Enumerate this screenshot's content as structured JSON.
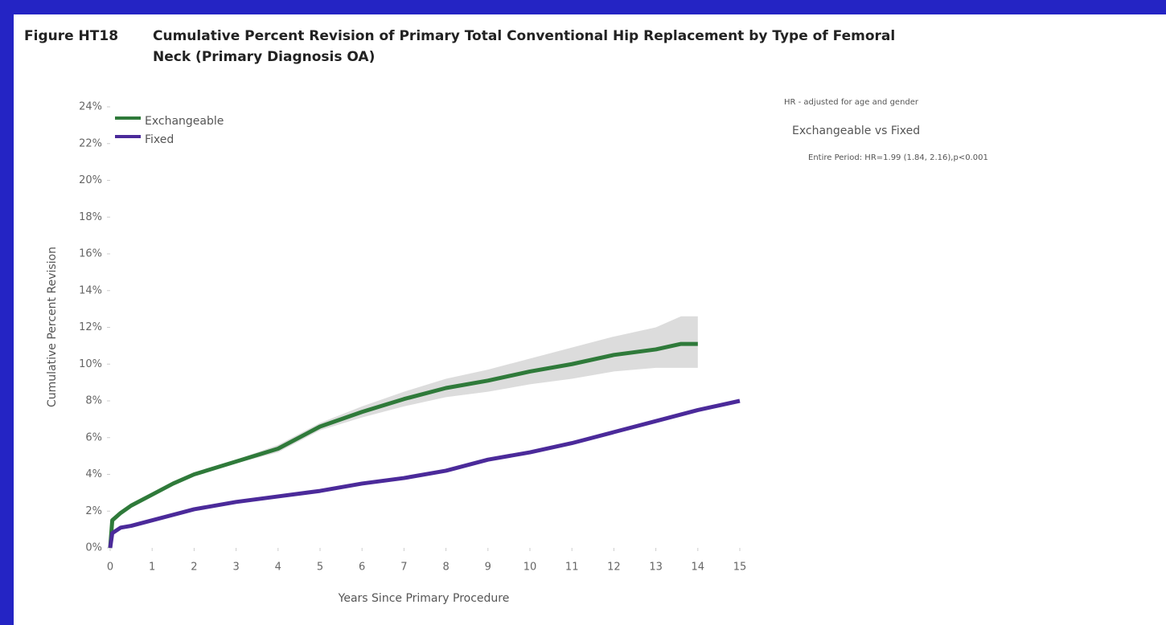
{
  "figure_label": "Figure HT18",
  "chart_data": {
    "type": "line",
    "title": "Cumulative Percent Revision of Primary Total Conventional Hip Replacement by Type of Femoral Neck (Primary Diagnosis OA)",
    "x_label": "Years Since Primary Procedure",
    "y_label": "Cumulative Percent Revision",
    "xlim": [
      0,
      15
    ],
    "xticks": [
      0,
      1,
      2,
      3,
      4,
      5,
      6,
      7,
      8,
      9,
      10,
      11,
      12,
      13,
      14,
      15
    ],
    "ylim": [
      0,
      24
    ],
    "yticks": [
      {
        "value": 0,
        "label": "0%"
      },
      {
        "value": 2,
        "label": "2%"
      },
      {
        "value": 4,
        "label": "4%"
      },
      {
        "value": 6,
        "label": "6%"
      },
      {
        "value": 8,
        "label": "8%"
      },
      {
        "value": 10,
        "label": "10%"
      },
      {
        "value": 12,
        "label": "12%"
      },
      {
        "value": 14,
        "label": "14%"
      },
      {
        "value": 16,
        "label": "16%"
      },
      {
        "value": 18,
        "label": "18%"
      },
      {
        "value": 20,
        "label": "20%"
      },
      {
        "value": 22,
        "label": "22%"
      },
      {
        "value": 24,
        "label": "24%"
      }
    ],
    "legend": "upper left",
    "band_color": "#dcdcdc",
    "series": [
      {
        "name": "Exchangeable",
        "color": "#2f7a3a",
        "x": [
          0,
          0.05,
          0.25,
          0.5,
          1,
          1.5,
          2,
          3,
          4,
          5,
          6,
          7,
          8,
          9,
          10,
          11,
          12,
          13,
          13.6,
          14
        ],
        "values": [
          0,
          1.5,
          1.9,
          2.3,
          2.9,
          3.5,
          4.0,
          4.7,
          5.4,
          6.6,
          7.4,
          8.1,
          8.7,
          9.1,
          9.6,
          10.0,
          10.5,
          10.8,
          11.1,
          11.1
        ],
        "ci_upper": [
          0,
          1.6,
          2.0,
          2.4,
          3.0,
          3.6,
          4.1,
          4.8,
          5.6,
          6.8,
          7.7,
          8.5,
          9.2,
          9.7,
          10.3,
          10.9,
          11.5,
          12.0,
          12.6,
          12.6
        ],
        "ci_lower": [
          0,
          1.4,
          1.8,
          2.2,
          2.8,
          3.4,
          3.9,
          4.6,
          5.2,
          6.4,
          7.1,
          7.7,
          8.2,
          8.5,
          8.9,
          9.2,
          9.6,
          9.8,
          9.8,
          9.8
        ]
      },
      {
        "name": "Fixed",
        "color": "#4b2a9a",
        "x": [
          0,
          0.05,
          0.25,
          0.5,
          1,
          2,
          3,
          4,
          5,
          6,
          7,
          8,
          9,
          10,
          11,
          12,
          13,
          14,
          15
        ],
        "values": [
          0,
          0.8,
          1.1,
          1.2,
          1.5,
          2.1,
          2.5,
          2.8,
          3.1,
          3.5,
          3.8,
          4.2,
          4.8,
          5.2,
          5.7,
          6.3,
          6.9,
          7.5,
          8.0
        ]
      }
    ],
    "annotations": [
      "HR - adjusted for age and gender",
      "Exchangeable vs Fixed",
      "Entire Period: HR=1.99 (1.84, 2.16),p<0.001"
    ]
  }
}
